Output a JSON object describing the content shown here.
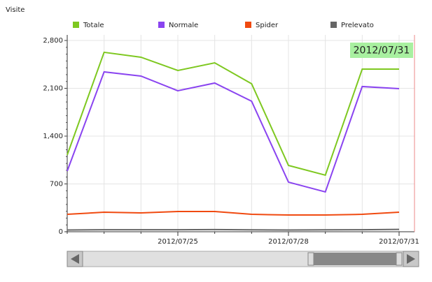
{
  "chart_data": {
    "type": "line",
    "y_label": "Visite",
    "annotation": "2012/07/31",
    "categories": [
      null,
      null,
      null,
      "2012/07/25",
      null,
      null,
      "2012/07/28",
      null,
      null,
      "2012/07/31"
    ],
    "ylim": [
      0,
      2800
    ],
    "yticks": [
      0,
      700,
      {
        "value": 1400,
        "label": "1,400"
      },
      {
        "value": 2100,
        "label": "2,100"
      },
      {
        "value": 2800,
        "label": "2,800"
      }
    ],
    "grid": true,
    "legend": "top",
    "series": [
      {
        "name": "Totale",
        "color": "#7ec820",
        "values": [
          1124,
          2627,
          2555,
          2361,
          2473,
          2167,
          971,
          828,
          2381,
          2381
        ]
      },
      {
        "name": "Normale",
        "color": "#8a44f0",
        "values": [
          889,
          2340,
          2279,
          2064,
          2177,
          1911,
          726,
          583,
          2126,
          2095
        ]
      },
      {
        "name": "Spider",
        "color": "#f04a10",
        "values": [
          255,
          286,
          276,
          296,
          296,
          255,
          245,
          245,
          255,
          286
        ]
      },
      {
        "name": "Prelevato",
        "color": "#666666",
        "values": [
          25,
          30,
          30,
          30,
          32,
          28,
          25,
          28,
          30,
          35
        ]
      }
    ]
  }
}
